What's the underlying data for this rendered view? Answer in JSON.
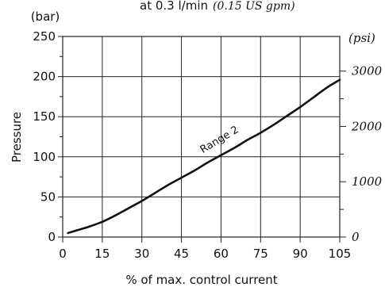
{
  "chart_data": {
    "type": "line",
    "title": "at 0.3 l/min",
    "title_alt_unit": "(0.15 US gpm)",
    "ylabel": "Pressure",
    "ylabel_unit": "(bar)",
    "y2label_unit": "(psi)",
    "xlabel": "% of max. control current",
    "xlim": [
      0,
      105
    ],
    "ylim": [
      0,
      250
    ],
    "grid": true,
    "x_ticks": [
      0,
      15,
      30,
      45,
      60,
      75,
      90,
      105
    ],
    "y_ticks": [
      0,
      50,
      100,
      150,
      200,
      250
    ],
    "y2_ticks": [
      0,
      1000,
      2000,
      3000
    ],
    "series": [
      {
        "name": "Range 2",
        "x": [
          2,
          5,
          10,
          15,
          20,
          25,
          30,
          35,
          40,
          45,
          50,
          55,
          60,
          65,
          70,
          75,
          80,
          85,
          90,
          95,
          100,
          105
        ],
        "values": [
          5,
          8,
          13,
          19,
          27,
          36,
          45,
          55,
          65,
          74,
          83,
          93,
          102,
          111,
          121,
          130,
          140,
          151,
          162,
          174,
          186,
          196
        ]
      }
    ],
    "annotation": "Range 2"
  }
}
